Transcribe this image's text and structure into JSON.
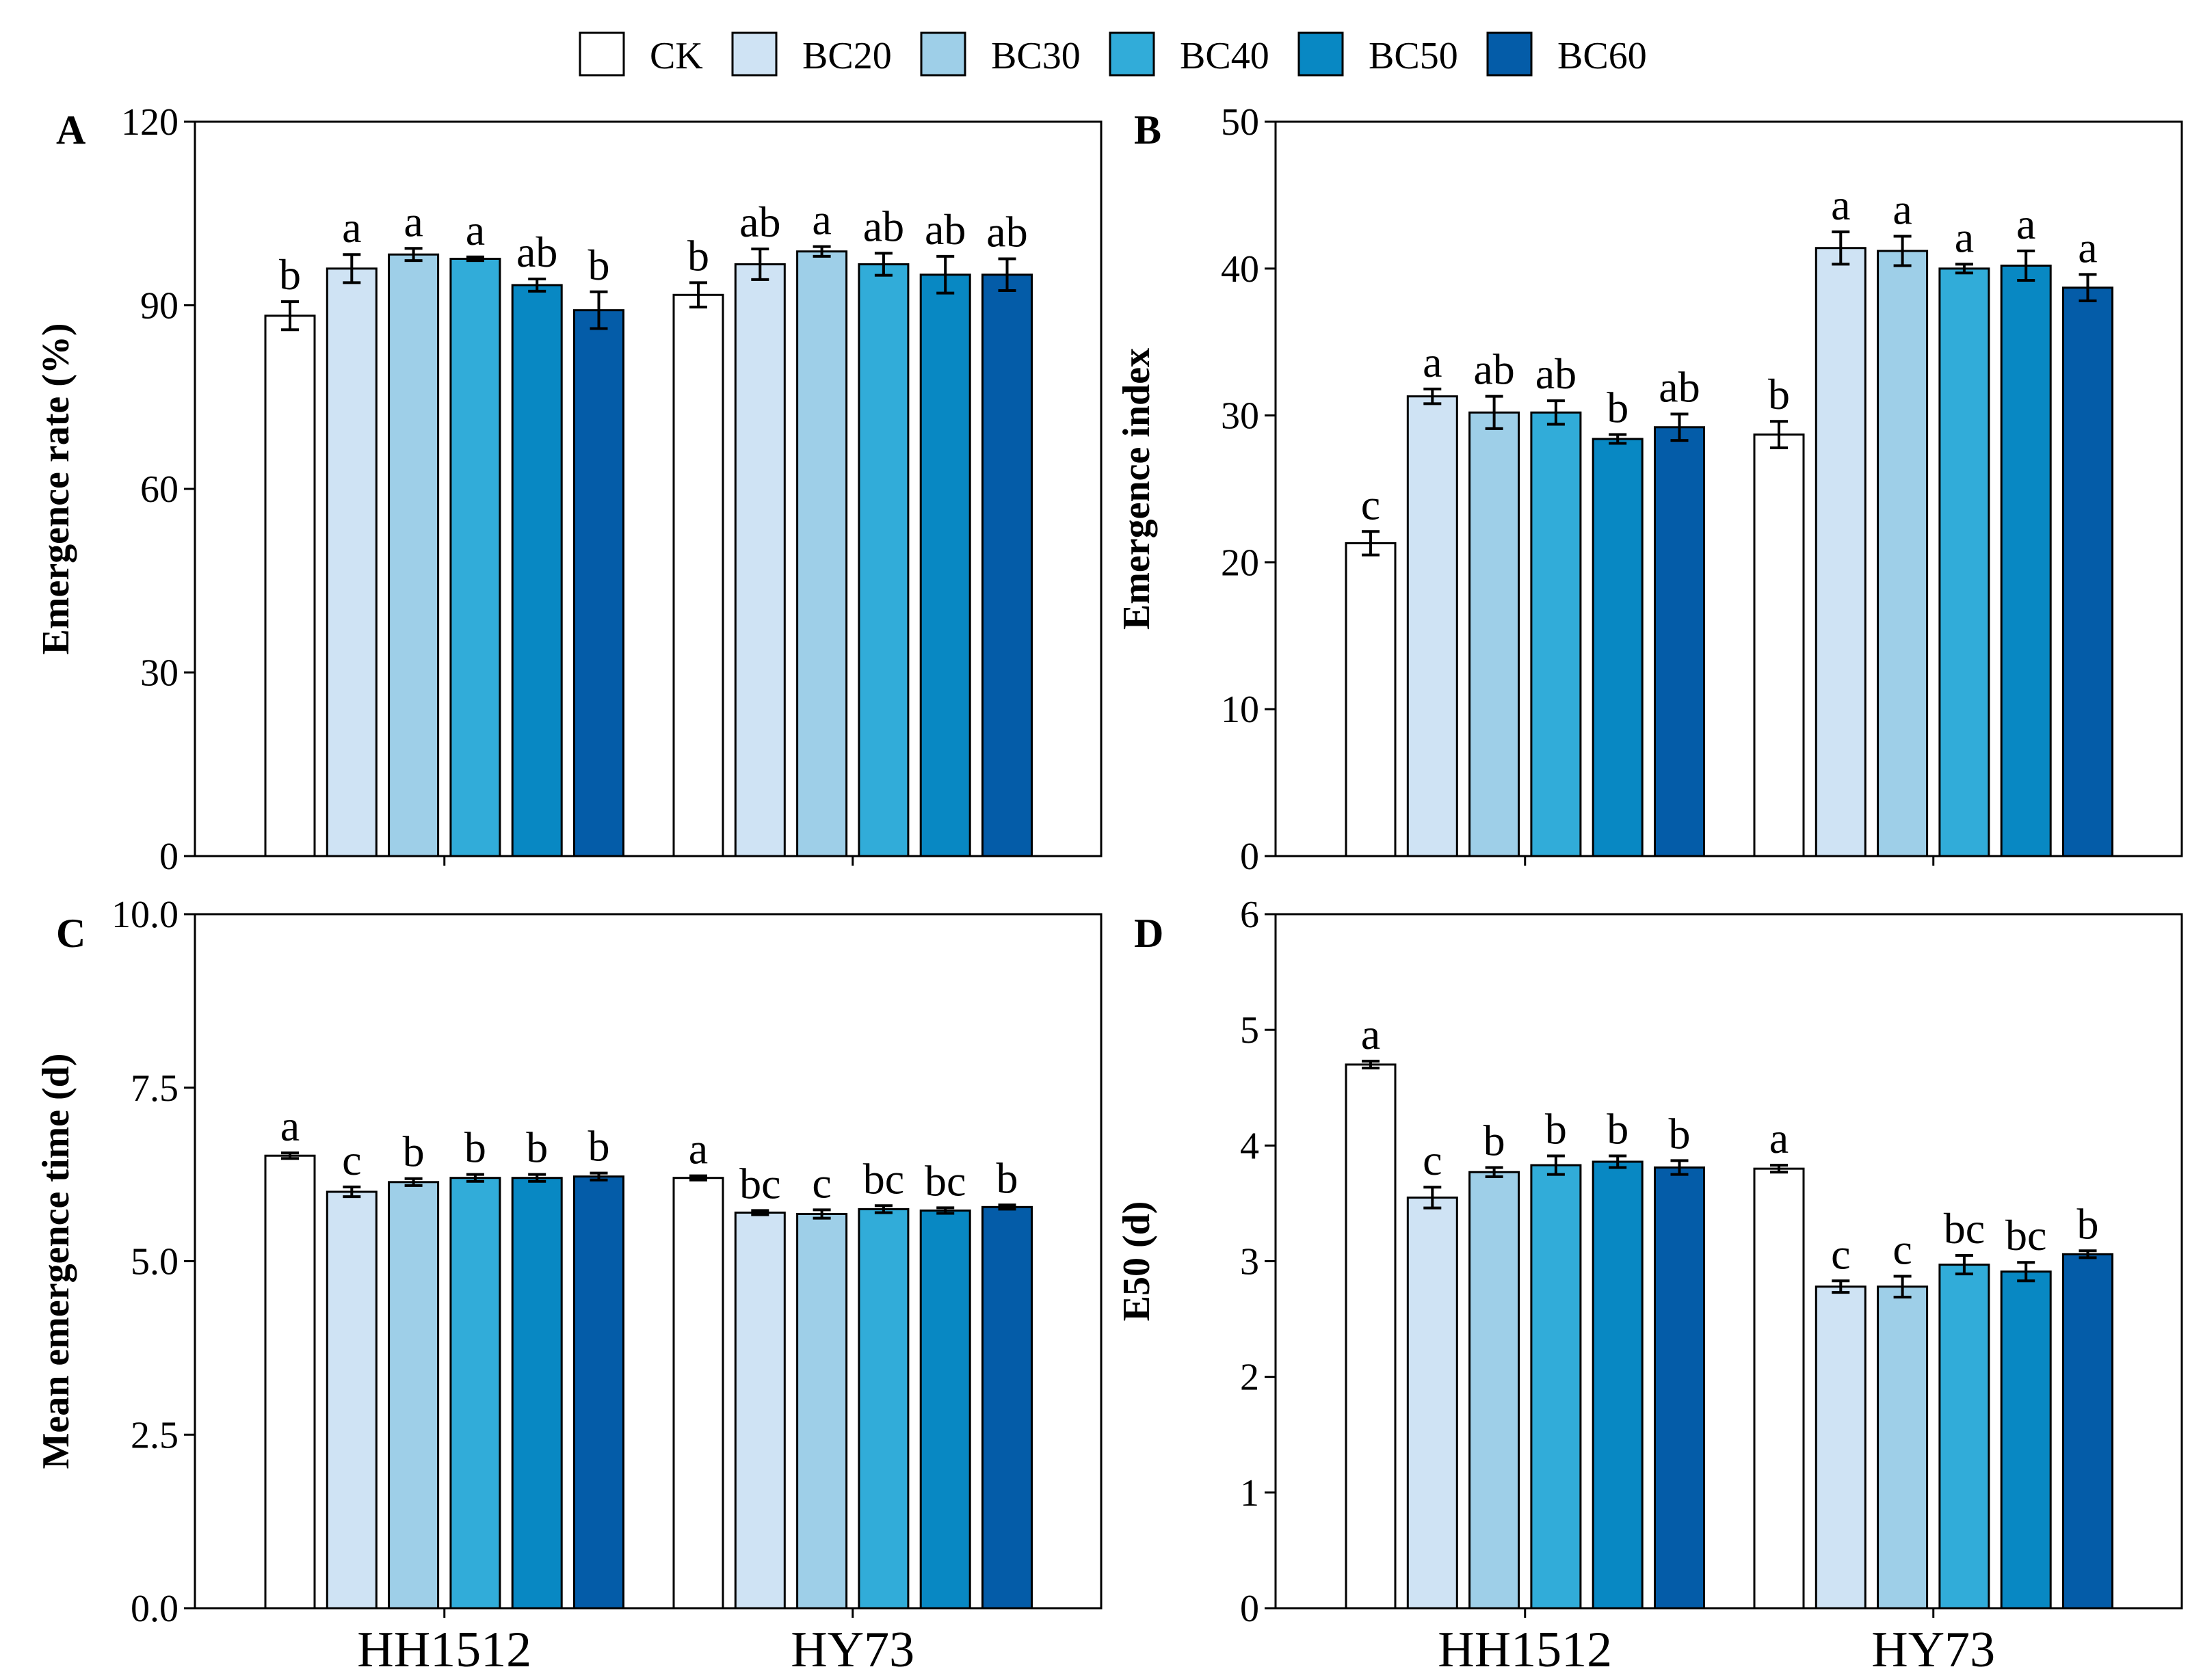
{
  "colors": {
    "CK": "#ffffff",
    "BC20": "#cfe3f4",
    "BC30": "#9ecfe8",
    "BC40": "#31acd9",
    "BC50": "#0888c3",
    "BC60": "#045ca8"
  },
  "legend": {
    "items": [
      "CK",
      "BC20",
      "BC30",
      "BC40",
      "BC50",
      "BC60"
    ]
  },
  "chart_data": [
    {
      "type": "bar",
      "panel": "A",
      "ylabel": "Emergence rate (%)",
      "ylim": [
        0,
        120
      ],
      "yticks": [
        0,
        30,
        60,
        90,
        120
      ],
      "ytick_labels": [
        "0",
        "30",
        "60",
        "90",
        "120"
      ],
      "categories": [
        "HH1512",
        "HY73"
      ],
      "show_x_labels": false,
      "series": [
        {
          "name": "CK",
          "values": [
            88.3,
            91.7
          ],
          "errors": [
            2.3,
            2.0
          ],
          "letters": [
            "b",
            "b"
          ]
        },
        {
          "name": "BC20",
          "values": [
            96.0,
            96.7
          ],
          "errors": [
            2.3,
            2.5
          ],
          "letters": [
            "a",
            "ab"
          ]
        },
        {
          "name": "BC30",
          "values": [
            98.3,
            98.8
          ],
          "errors": [
            1.0,
            0.8
          ],
          "letters": [
            "a",
            "a"
          ]
        },
        {
          "name": "BC40",
          "values": [
            97.6,
            96.7
          ],
          "errors": [
            0.3,
            1.8
          ],
          "letters": [
            "a",
            "ab"
          ]
        },
        {
          "name": "BC50",
          "values": [
            93.3,
            95.0
          ],
          "errors": [
            1.0,
            3.0
          ],
          "letters": [
            "ab",
            "ab"
          ]
        },
        {
          "name": "BC60",
          "values": [
            89.2,
            95.0
          ],
          "errors": [
            3.0,
            2.6
          ],
          "letters": [
            "b",
            "ab"
          ]
        }
      ]
    },
    {
      "type": "bar",
      "panel": "B",
      "ylabel": "Emergence index",
      "ylim": [
        0,
        50
      ],
      "yticks": [
        0,
        10,
        20,
        30,
        40,
        50
      ],
      "ytick_labels": [
        "0",
        "10",
        "20",
        "30",
        "40",
        "50"
      ],
      "categories": [
        "HH1512",
        "HY73"
      ],
      "show_x_labels": false,
      "series": [
        {
          "name": "CK",
          "values": [
            21.3,
            28.7
          ],
          "errors": [
            0.8,
            0.9
          ],
          "letters": [
            "c",
            "b"
          ]
        },
        {
          "name": "BC20",
          "values": [
            31.3,
            41.4
          ],
          "errors": [
            0.5,
            1.1
          ],
          "letters": [
            "a",
            "a"
          ]
        },
        {
          "name": "BC30",
          "values": [
            30.2,
            41.2
          ],
          "errors": [
            1.1,
            1.0
          ],
          "letters": [
            "ab",
            "a"
          ]
        },
        {
          "name": "BC40",
          "values": [
            30.2,
            40.0
          ],
          "errors": [
            0.8,
            0.3
          ],
          "letters": [
            "ab",
            "a"
          ]
        },
        {
          "name": "BC50",
          "values": [
            28.4,
            40.2
          ],
          "errors": [
            0.3,
            1.0
          ],
          "letters": [
            "b",
            "a"
          ]
        },
        {
          "name": "BC60",
          "values": [
            29.2,
            38.7
          ],
          "errors": [
            0.9,
            0.9
          ],
          "letters": [
            "ab",
            "a"
          ]
        }
      ]
    },
    {
      "type": "bar",
      "panel": "C",
      "ylabel": "Mean emergence time (d)",
      "ylim": [
        0,
        10
      ],
      "yticks": [
        0,
        2.5,
        5,
        7.5,
        10
      ],
      "ytick_labels": [
        "0.0",
        "2.5",
        "5.0",
        "7.5",
        "10.0"
      ],
      "categories": [
        "HH1512",
        "HY73"
      ],
      "show_x_labels": true,
      "series": [
        {
          "name": "CK",
          "values": [
            6.52,
            6.2
          ],
          "errors": [
            0.04,
            0.03
          ],
          "letters": [
            "a",
            "a"
          ]
        },
        {
          "name": "BC20",
          "values": [
            6.0,
            5.7
          ],
          "errors": [
            0.07,
            0.03
          ],
          "letters": [
            "c",
            "bc"
          ]
        },
        {
          "name": "BC30",
          "values": [
            6.14,
            5.68
          ],
          "errors": [
            0.05,
            0.06
          ],
          "letters": [
            "b",
            "c"
          ]
        },
        {
          "name": "BC40",
          "values": [
            6.2,
            5.75
          ],
          "errors": [
            0.05,
            0.05
          ],
          "letters": [
            "b",
            "bc"
          ]
        },
        {
          "name": "BC50",
          "values": [
            6.2,
            5.73
          ],
          "errors": [
            0.05,
            0.04
          ],
          "letters": [
            "b",
            "bc"
          ]
        },
        {
          "name": "BC60",
          "values": [
            6.22,
            5.78
          ],
          "errors": [
            0.05,
            0.03
          ],
          "letters": [
            "b",
            "b"
          ]
        }
      ]
    },
    {
      "type": "bar",
      "panel": "D",
      "ylabel": "E50 (d)",
      "ylim": [
        0,
        6
      ],
      "yticks": [
        0,
        1,
        2,
        3,
        4,
        5,
        6
      ],
      "ytick_labels": [
        "0",
        "1",
        "2",
        "3",
        "4",
        "5",
        "6"
      ],
      "categories": [
        "HH1512",
        "HY73"
      ],
      "show_x_labels": true,
      "series": [
        {
          "name": "CK",
          "values": [
            4.7,
            3.8
          ],
          "errors": [
            0.03,
            0.03
          ],
          "letters": [
            "a",
            "a"
          ]
        },
        {
          "name": "BC20",
          "values": [
            3.55,
            2.78
          ],
          "errors": [
            0.09,
            0.05
          ],
          "letters": [
            "c",
            "c"
          ]
        },
        {
          "name": "BC30",
          "values": [
            3.77,
            2.78
          ],
          "errors": [
            0.04,
            0.09
          ],
          "letters": [
            "b",
            "c"
          ]
        },
        {
          "name": "BC40",
          "values": [
            3.83,
            2.97
          ],
          "errors": [
            0.08,
            0.08
          ],
          "letters": [
            "b",
            "bc"
          ]
        },
        {
          "name": "BC50",
          "values": [
            3.86,
            2.91
          ],
          "errors": [
            0.05,
            0.08
          ],
          "letters": [
            "b",
            "bc"
          ]
        },
        {
          "name": "BC60",
          "values": [
            3.81,
            3.06
          ],
          "errors": [
            0.06,
            0.03
          ],
          "letters": [
            "b",
            "b"
          ]
        }
      ]
    }
  ]
}
